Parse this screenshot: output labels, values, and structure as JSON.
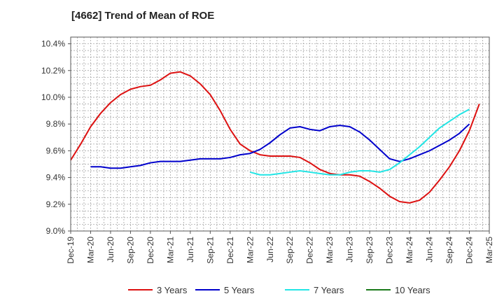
{
  "chart_data": {
    "type": "line",
    "title": "[4662]  Trend of Mean of ROE",
    "xlabel": "",
    "ylabel": "",
    "ylim": [
      9.0,
      10.45
    ],
    "y_ticks": [
      9.0,
      9.2,
      9.4,
      9.6,
      9.8,
      10.0,
      10.2,
      10.4
    ],
    "y_tick_labels": [
      "9.0%",
      "9.2%",
      "9.4%",
      "9.6%",
      "9.8%",
      "10.0%",
      "10.2%",
      "10.4%"
    ],
    "x_tick_labels": [
      "Dec-19",
      "Mar-20",
      "Jun-20",
      "Sep-20",
      "Dec-20",
      "Mar-21",
      "Jun-21",
      "Sep-21",
      "Dec-21",
      "Mar-22",
      "Jun-22",
      "Sep-22",
      "Dec-22",
      "Mar-23",
      "Jun-23",
      "Sep-23",
      "Dec-23",
      "Mar-24",
      "Jun-24",
      "Sep-24",
      "Dec-24",
      "Mar-25"
    ],
    "grid": true,
    "legend_position": "bottom",
    "series": [
      {
        "name": "3 Years",
        "color": "#dd1111",
        "points": [
          [
            0,
            9.53
          ],
          [
            0.5,
            9.65
          ],
          [
            1,
            9.78
          ],
          [
            1.5,
            9.88
          ],
          [
            2,
            9.96
          ],
          [
            2.5,
            10.02
          ],
          [
            3,
            10.06
          ],
          [
            3.5,
            10.08
          ],
          [
            4,
            10.09
          ],
          [
            4.5,
            10.13
          ],
          [
            5,
            10.18
          ],
          [
            5.5,
            10.19
          ],
          [
            6,
            10.16
          ],
          [
            6.5,
            10.1
          ],
          [
            7,
            10.02
          ],
          [
            7.5,
            9.9
          ],
          [
            8,
            9.76
          ],
          [
            8.5,
            9.65
          ],
          [
            9,
            9.6
          ],
          [
            9.5,
            9.57
          ],
          [
            10,
            9.56
          ],
          [
            10.5,
            9.56
          ],
          [
            11,
            9.56
          ],
          [
            11.5,
            9.55
          ],
          [
            12,
            9.51
          ],
          [
            12.5,
            9.46
          ],
          [
            13,
            9.43
          ],
          [
            13.5,
            9.42
          ],
          [
            14,
            9.42
          ],
          [
            14.5,
            9.41
          ],
          [
            15,
            9.37
          ],
          [
            15.5,
            9.32
          ],
          [
            16,
            9.26
          ],
          [
            16.5,
            9.22
          ],
          [
            17,
            9.21
          ],
          [
            17.5,
            9.23
          ],
          [
            18,
            9.29
          ],
          [
            18.5,
            9.38
          ],
          [
            19,
            9.48
          ],
          [
            19.5,
            9.6
          ],
          [
            20,
            9.75
          ],
          [
            20.5,
            9.95
          ]
        ]
      },
      {
        "name": "5 Years",
        "color": "#0000cc",
        "points": [
          [
            1,
            9.48
          ],
          [
            1.5,
            9.48
          ],
          [
            2,
            9.47
          ],
          [
            2.5,
            9.47
          ],
          [
            3,
            9.48
          ],
          [
            3.5,
            9.49
          ],
          [
            4,
            9.51
          ],
          [
            4.5,
            9.52
          ],
          [
            5,
            9.52
          ],
          [
            5.5,
            9.52
          ],
          [
            6,
            9.53
          ],
          [
            6.5,
            9.54
          ],
          [
            7,
            9.54
          ],
          [
            7.5,
            9.54
          ],
          [
            8,
            9.55
          ],
          [
            8.5,
            9.57
          ],
          [
            9,
            9.58
          ],
          [
            9.5,
            9.61
          ],
          [
            10,
            9.66
          ],
          [
            10.5,
            9.72
          ],
          [
            11,
            9.77
          ],
          [
            11.5,
            9.78
          ],
          [
            12,
            9.76
          ],
          [
            12.5,
            9.75
          ],
          [
            13,
            9.78
          ],
          [
            13.5,
            9.79
          ],
          [
            14,
            9.78
          ],
          [
            14.5,
            9.74
          ],
          [
            15,
            9.68
          ],
          [
            15.5,
            9.61
          ],
          [
            16,
            9.54
          ],
          [
            16.5,
            9.52
          ],
          [
            17,
            9.54
          ],
          [
            17.5,
            9.57
          ],
          [
            18,
            9.6
          ],
          [
            18.5,
            9.64
          ],
          [
            19,
            9.68
          ],
          [
            19.5,
            9.73
          ],
          [
            20,
            9.8
          ]
        ]
      },
      {
        "name": "7 Years",
        "color": "#22e5e5",
        "points": [
          [
            9,
            9.44
          ],
          [
            9.5,
            9.42
          ],
          [
            10,
            9.42
          ],
          [
            10.5,
            9.43
          ],
          [
            11,
            9.44
          ],
          [
            11.5,
            9.45
          ],
          [
            12,
            9.44
          ],
          [
            12.5,
            9.43
          ],
          [
            13,
            9.42
          ],
          [
            13.5,
            9.42
          ],
          [
            14,
            9.44
          ],
          [
            14.5,
            9.45
          ],
          [
            15,
            9.45
          ],
          [
            15.5,
            9.44
          ],
          [
            16,
            9.46
          ],
          [
            16.5,
            9.51
          ],
          [
            17,
            9.57
          ],
          [
            17.5,
            9.63
          ],
          [
            18,
            9.7
          ],
          [
            18.5,
            9.77
          ],
          [
            19,
            9.82
          ],
          [
            19.5,
            9.87
          ],
          [
            20,
            9.91
          ]
        ]
      },
      {
        "name": "10 Years",
        "color": "#1a7a1a",
        "points": []
      }
    ]
  }
}
